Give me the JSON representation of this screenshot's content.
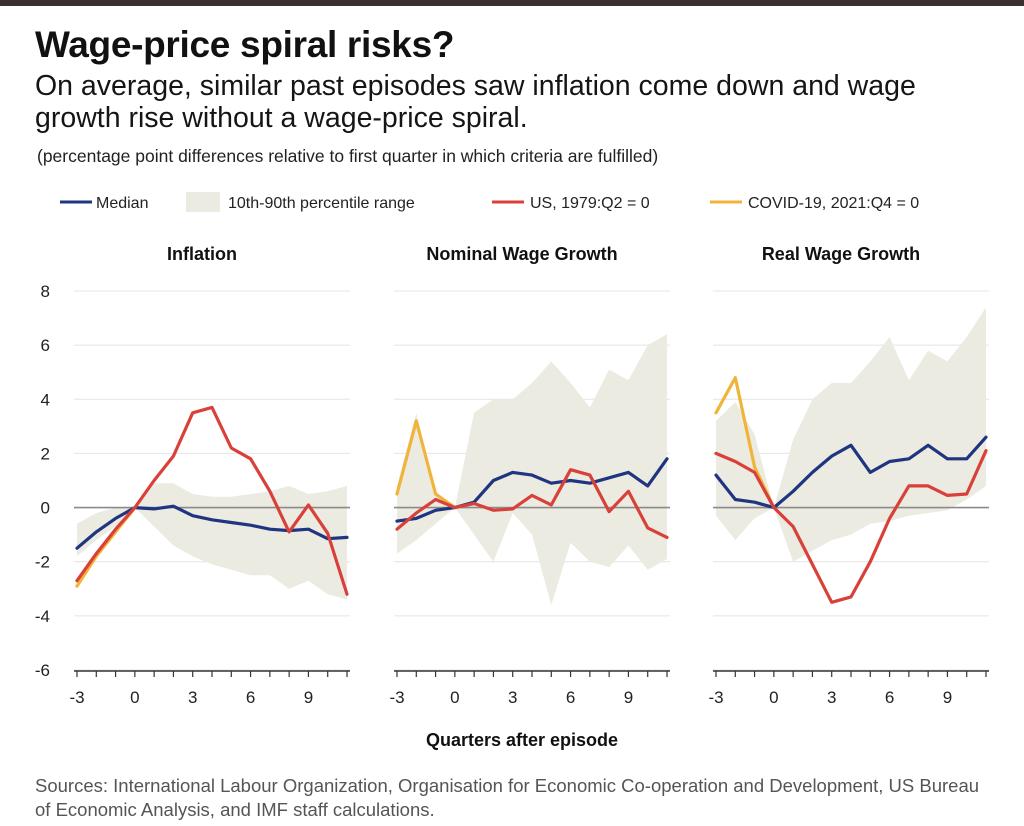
{
  "title": "Wage-price spiral risks?",
  "subtitle": "On average, similar past episodes saw inflation come down and wage growth rise without a wage-price spiral.",
  "note": "(percentage point differences relative to first quarter in which criteria are fulfilled)",
  "sources": "Sources: International Labour Organization, Organisation for Economic Co-operation and Development, US Bureau of Economic Analysis, and IMF staff calculations.",
  "chart_data": {
    "type": "line",
    "x": [
      -3,
      -2,
      -1,
      0,
      1,
      2,
      3,
      4,
      5,
      6,
      7,
      8,
      9,
      10,
      11
    ],
    "xticks": [
      "-3",
      "0",
      "3",
      "6",
      "9"
    ],
    "yticks": [
      "8",
      "6",
      "4",
      "2",
      "0",
      "-2",
      "-4",
      "-6"
    ],
    "ylim": [
      -6,
      8
    ],
    "xlabel": "Quarters after episode",
    "legend": {
      "median": "Median",
      "band": "10th-90th percentile range",
      "us": "US, 1979:Q2 = 0",
      "covid": "COVID-19, 2021:Q4 = 0"
    },
    "colors": {
      "median": "#1f3580",
      "band": "#ecebe2",
      "us": "#d9403a",
      "covid": "#f0b538",
      "zero": "#8a8a8a",
      "grid": "#e4e4e4"
    },
    "panels": [
      {
        "title": "Inflation",
        "median": [
          -1.5,
          -0.9,
          -0.4,
          0,
          -0.05,
          0.05,
          -0.3,
          -0.45,
          -0.55,
          -0.65,
          -0.8,
          -0.85,
          -0.8,
          -1.15,
          -1.1
        ],
        "us": [
          -2.7,
          -1.7,
          -0.8,
          0,
          1,
          1.9,
          3.5,
          3.7,
          2.2,
          1.8,
          0.6,
          -0.9,
          0.1,
          -0.95,
          -3.2
        ],
        "covid": [
          -2.9,
          -1.8,
          -0.9,
          0
        ],
        "p10": [
          -1.8,
          -1.2,
          -0.7,
          0,
          -0.7,
          -1.4,
          -1.8,
          -2.1,
          -2.3,
          -2.5,
          -2.5,
          -3.0,
          -2.7,
          -3.2,
          -3.4
        ],
        "p90": [
          -0.6,
          -0.2,
          0,
          0,
          0.9,
          0.9,
          0.5,
          0.4,
          0.4,
          0.5,
          0.6,
          0.8,
          0.5,
          0.6,
          0.8
        ]
      },
      {
        "title": "Nominal Wage Growth",
        "median": [
          -0.5,
          -0.4,
          -0.1,
          0,
          0.2,
          1.0,
          1.3,
          1.2,
          0.9,
          1.0,
          0.9,
          1.1,
          1.3,
          0.8,
          1.8
        ],
        "us": [
          -0.8,
          -0.2,
          0.3,
          0,
          0.15,
          -0.1,
          -0.05,
          0.45,
          0.1,
          1.4,
          1.2,
          -0.15,
          0.6,
          -0.75,
          -1.1
        ],
        "covid": [
          0.5,
          3.2,
          0.5,
          0
        ],
        "p10": [
          -1.7,
          -1.2,
          -0.6,
          0,
          -1.0,
          -2.0,
          -0.2,
          -1.0,
          -3.6,
          -1.3,
          -2.0,
          -2.2,
          -1.4,
          -2.3,
          -1.9
        ],
        "p90": [
          0.8,
          3.5,
          0.6,
          0,
          3.5,
          4.0,
          4.0,
          4.6,
          5.4,
          4.6,
          3.7,
          5.1,
          4.7,
          6.0,
          6.4
        ]
      },
      {
        "title": "Real Wage Growth",
        "median": [
          1.2,
          0.3,
          0.2,
          0,
          0.6,
          1.3,
          1.9,
          2.3,
          1.3,
          1.7,
          1.8,
          2.3,
          1.8,
          1.8,
          2.6
        ],
        "us": [
          2.0,
          1.7,
          1.3,
          0,
          -0.7,
          -2.1,
          -3.5,
          -3.3,
          -2.0,
          -0.4,
          0.8,
          0.8,
          0.45,
          0.5,
          2.1
        ],
        "covid": [
          3.5,
          4.8,
          1.5,
          0
        ],
        "p10": [
          -0.3,
          -1.2,
          -0.4,
          0,
          -2.0,
          -1.6,
          -1.2,
          -1.0,
          -0.6,
          -0.5,
          -0.3,
          -0.2,
          -0.1,
          0.3,
          0.8
        ],
        "p90": [
          3.2,
          3.9,
          2.7,
          0,
          2.5,
          4.0,
          4.6,
          4.6,
          5.4,
          6.3,
          4.7,
          5.8,
          5.4,
          6.3,
          7.4
        ]
      }
    ]
  }
}
